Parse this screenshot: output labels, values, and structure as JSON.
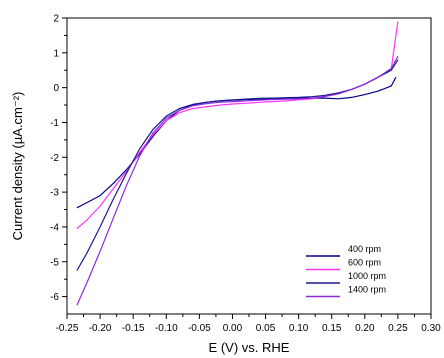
{
  "chart_data": {
    "type": "line",
    "title": "",
    "xlabel": "E (V) vs. RHE",
    "ylabel": "Current density (µA.cm⁻²)",
    "xlim": [
      -0.25,
      0.3
    ],
    "ylim": [
      -6.5,
      2
    ],
    "x_ticks": [
      -0.25,
      -0.2,
      -0.15,
      -0.1,
      -0.05,
      0.0,
      0.05,
      0.1,
      0.15,
      0.2,
      0.25,
      0.3
    ],
    "x_tick_labels": [
      "-0.25",
      "-0.20",
      "-0.15",
      "-0.10",
      "-0.05",
      "0.00",
      "0.05",
      "0.10",
      "0.15",
      "0.20",
      "0.25",
      "0.30"
    ],
    "y_ticks": [
      -6,
      -5,
      -4,
      -3,
      -2,
      -1,
      0,
      1,
      2
    ],
    "y_tick_labels": [
      "-6",
      "-5",
      "-4",
      "-3",
      "-2",
      "-1",
      "0",
      "1",
      "2"
    ],
    "grid": false,
    "legend_position": "bottom-right",
    "series": [
      {
        "name": "400 rpm",
        "color": "#00008b",
        "x": [
          -0.235,
          -0.22,
          -0.2,
          -0.18,
          -0.16,
          -0.14,
          -0.12,
          -0.1,
          -0.08,
          -0.06,
          -0.04,
          -0.02,
          0.0,
          0.02,
          0.04,
          0.06,
          0.08,
          0.1,
          0.12,
          0.14,
          0.16,
          0.18,
          0.2,
          0.22,
          0.24,
          0.247
        ],
        "y": [
          -3.45,
          -3.3,
          -3.1,
          -2.75,
          -2.35,
          -1.9,
          -1.4,
          -0.95,
          -0.65,
          -0.5,
          -0.42,
          -0.38,
          -0.36,
          -0.34,
          -0.33,
          -0.32,
          -0.31,
          -0.3,
          -0.3,
          -0.3,
          -0.32,
          -0.28,
          -0.2,
          -0.1,
          0.05,
          0.3
        ]
      },
      {
        "name": "600 rpm",
        "color": "#ff33ff",
        "x": [
          -0.235,
          -0.22,
          -0.2,
          -0.18,
          -0.16,
          -0.14,
          -0.12,
          -0.1,
          -0.08,
          -0.06,
          -0.04,
          -0.02,
          0.0,
          0.02,
          0.04,
          0.06,
          0.08,
          0.1,
          0.12,
          0.14,
          0.16,
          0.18,
          0.2,
          0.22,
          0.24,
          0.25
        ],
        "y": [
          -4.05,
          -3.8,
          -3.4,
          -2.9,
          -2.4,
          -1.85,
          -1.35,
          -0.95,
          -0.72,
          -0.6,
          -0.55,
          -0.5,
          -0.47,
          -0.45,
          -0.42,
          -0.4,
          -0.38,
          -0.35,
          -0.32,
          -0.25,
          -0.15,
          -0.05,
          0.1,
          0.3,
          0.55,
          1.9
        ]
      },
      {
        "name": "1000 rpm",
        "color": "#1a1a8c",
        "x": [
          -0.235,
          -0.22,
          -0.2,
          -0.18,
          -0.16,
          -0.14,
          -0.12,
          -0.1,
          -0.08,
          -0.06,
          -0.04,
          -0.02,
          0.0,
          0.02,
          0.04,
          0.06,
          0.08,
          0.1,
          0.12,
          0.14,
          0.16,
          0.18,
          0.2,
          0.22,
          0.24,
          0.25
        ],
        "y": [
          -5.25,
          -4.75,
          -4.0,
          -3.2,
          -2.45,
          -1.75,
          -1.2,
          -0.82,
          -0.6,
          -0.48,
          -0.42,
          -0.38,
          -0.35,
          -0.33,
          -0.31,
          -0.3,
          -0.29,
          -0.28,
          -0.26,
          -0.22,
          -0.15,
          -0.05,
          0.1,
          0.3,
          0.5,
          0.8
        ]
      },
      {
        "name": "1400 rpm",
        "color": "#8a2be2",
        "x": [
          -0.235,
          -0.22,
          -0.2,
          -0.18,
          -0.16,
          -0.14,
          -0.12,
          -0.1,
          -0.08,
          -0.06,
          -0.04,
          -0.02,
          0.0,
          0.02,
          0.04,
          0.06,
          0.08,
          0.1,
          0.12,
          0.14,
          0.16,
          0.18,
          0.2,
          0.22,
          0.24,
          0.25
        ],
        "y": [
          -6.25,
          -5.6,
          -4.7,
          -3.75,
          -2.8,
          -1.95,
          -1.3,
          -0.88,
          -0.65,
          -0.52,
          -0.46,
          -0.42,
          -0.4,
          -0.38,
          -0.36,
          -0.34,
          -0.33,
          -0.32,
          -0.3,
          -0.25,
          -0.18,
          -0.05,
          0.1,
          0.3,
          0.55,
          0.9
        ]
      }
    ]
  }
}
